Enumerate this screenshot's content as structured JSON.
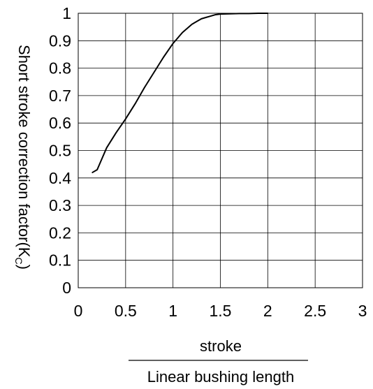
{
  "chart_data": {
    "type": "line",
    "title": "",
    "xlabel_numerator": "stroke",
    "xlabel_denominator": "Linear bushing length",
    "ylabel": "Short stroke correction factor(K",
    "ylabel_subscript": "C",
    "ylabel_suffix": ")",
    "xlim": [
      0,
      3
    ],
    "ylim": [
      0,
      1
    ],
    "grid": true,
    "x_ticks": [
      0,
      0.5,
      1,
      1.5,
      2,
      2.5,
      3
    ],
    "x_tick_labels": [
      "0",
      "0.5",
      "1",
      "1.5",
      "2",
      "2.5",
      "3"
    ],
    "y_ticks": [
      0,
      0.1,
      0.2,
      0.3,
      0.4,
      0.5,
      0.6,
      0.7,
      0.8,
      0.9,
      1
    ],
    "y_tick_labels": [
      "0",
      "0.1",
      "0.2",
      "0.3",
      "0.4",
      "0.5",
      "0.6",
      "0.7",
      "0.8",
      "0.9",
      "1"
    ],
    "series": [
      {
        "x": [
          0.15,
          0.2,
          0.25,
          0.3,
          0.4,
          0.5,
          0.6,
          0.7,
          0.8,
          0.9,
          1.0,
          1.05,
          1.1,
          1.15,
          1.2,
          1.25,
          1.3,
          1.35,
          1.4,
          1.45,
          1.5,
          1.6,
          1.7,
          1.8,
          1.9,
          2.0
        ],
        "y": [
          0.42,
          0.43,
          0.47,
          0.51,
          0.565,
          0.615,
          0.67,
          0.73,
          0.785,
          0.84,
          0.89,
          0.91,
          0.93,
          0.945,
          0.96,
          0.97,
          0.98,
          0.985,
          0.99,
          0.995,
          0.997,
          0.998,
          0.999,
          0.999,
          1.0,
          1.0
        ]
      }
    ]
  }
}
